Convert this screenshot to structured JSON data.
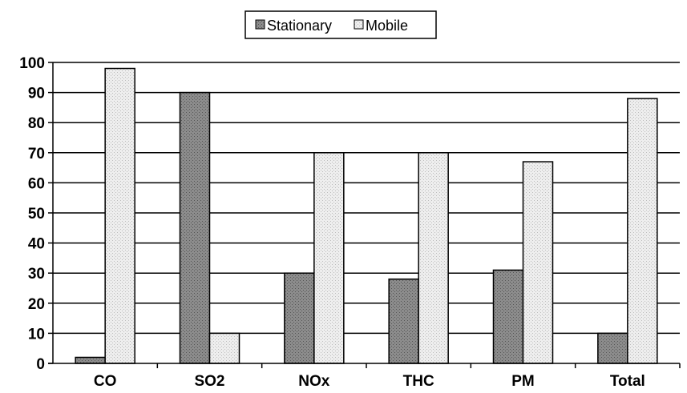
{
  "chart_data": {
    "type": "bar",
    "categories": [
      "CO",
      "SO2",
      "NOx",
      "THC",
      "PM",
      "Total"
    ],
    "series": [
      {
        "name": "Stationary",
        "values": [
          2,
          90,
          30,
          28,
          31,
          10
        ]
      },
      {
        "name": "Mobile",
        "values": [
          98,
          10,
          70,
          70,
          67,
          88
        ]
      }
    ],
    "ylim": [
      0,
      100
    ],
    "yticks": [
      0,
      10,
      20,
      30,
      40,
      50,
      60,
      70,
      80,
      90,
      100
    ],
    "grid": true,
    "legend_position": "top",
    "title": "",
    "xlabel": "",
    "ylabel": "",
    "colors": {
      "Stationary": "#8c8c8c",
      "Mobile": "#e6e6e6",
      "grid": "#000000",
      "axis": "#000000"
    }
  }
}
